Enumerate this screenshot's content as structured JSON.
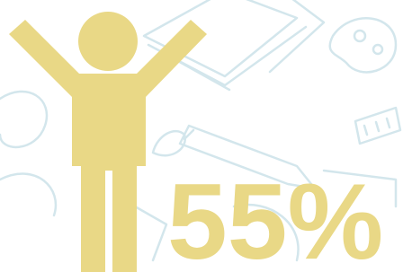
{
  "stat": "55%"
}
